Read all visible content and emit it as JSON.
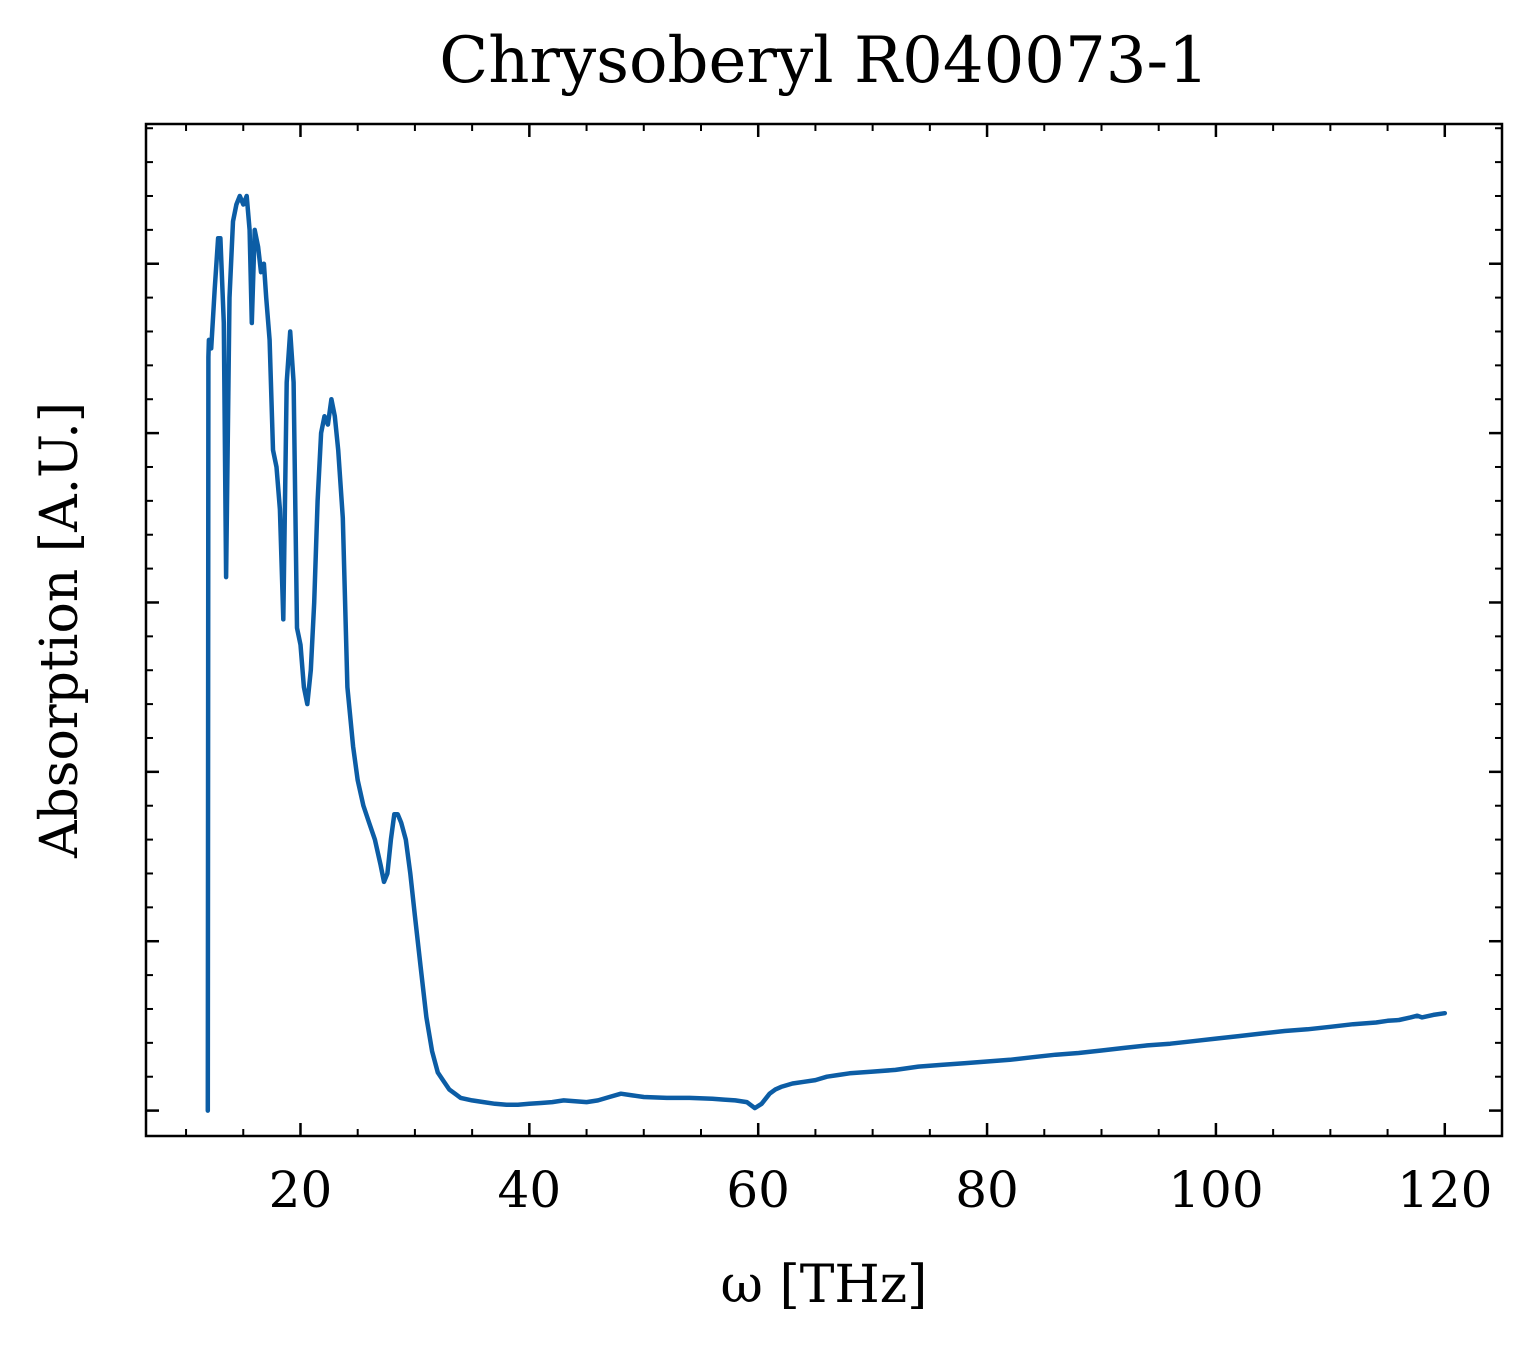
{
  "chart_data": {
    "type": "line",
    "title": "Chrysoberyl R040073-1",
    "xlabel": "ω [THz]",
    "ylabel": "Absorption [A.U.]",
    "xlim": [
      6.5,
      125
    ],
    "ylim": [
      -0.03,
      1.165
    ],
    "xticks": [
      20,
      40,
      60,
      80,
      100,
      120
    ],
    "xtick_labels": [
      "20",
      "40",
      "60",
      "80",
      "100",
      "120"
    ],
    "yticks": [
      0.0,
      0.2,
      0.4,
      0.6,
      0.8,
      1.0
    ],
    "ytick_labels_shown": false,
    "grid": false,
    "line_color": "#0c5da5",
    "series": [
      {
        "x": [
          11.9,
          11.95,
          12.0,
          12.2,
          12.5,
          12.8,
          13.0,
          13.3,
          13.5,
          13.8,
          14.1,
          14.4,
          14.7,
          15.0,
          15.3,
          15.55,
          15.75,
          16.0,
          16.3,
          16.55,
          16.8,
          17.0,
          17.3,
          17.6,
          17.9,
          18.2,
          18.5,
          18.8,
          19.1,
          19.4,
          19.7,
          20.0,
          20.3,
          20.6,
          20.9,
          21.2,
          21.5,
          21.8,
          22.1,
          22.4,
          22.7,
          23.0,
          23.3,
          23.7,
          24.1,
          24.6,
          25.0,
          25.5,
          26.0,
          26.5,
          27.0,
          27.3,
          27.6,
          27.9,
          28.2,
          28.5,
          28.8,
          29.2,
          29.6,
          30.0,
          30.5,
          31.0,
          31.5,
          32.0,
          32.5,
          33.0,
          33.5,
          34.0,
          35.0,
          36.0,
          37.0,
          38.0,
          39.0,
          40.0,
          41.0,
          42.0,
          43.0,
          44.0,
          45.0,
          46.0,
          47.0,
          48.0,
          49.0,
          50.0,
          52.0,
          54.0,
          56.0,
          57.0,
          58.0,
          59.0,
          59.7,
          60.3,
          61.0,
          61.5,
          62.0,
          63.0,
          64.0,
          65.0,
          66.0,
          67.0,
          68.0,
          70.0,
          72.0,
          74.0,
          76.0,
          78.0,
          80.0,
          82.0,
          84.0,
          86.0,
          88.0,
          90.0,
          92.0,
          94.0,
          96.0,
          98.0,
          100.0,
          102.0,
          104.0,
          106.0,
          108.0,
          110.0,
          112.0,
          114.0,
          115.0,
          116.0,
          117.0,
          117.6,
          118.0,
          119.0,
          120.0
        ],
        "y": [
          0.0,
          0.89,
          0.91,
          0.9,
          0.97,
          1.03,
          1.03,
          0.93,
          0.63,
          0.96,
          1.05,
          1.07,
          1.08,
          1.07,
          1.08,
          1.04,
          0.93,
          1.04,
          1.02,
          0.99,
          1.0,
          0.96,
          0.91,
          0.78,
          0.76,
          0.71,
          0.58,
          0.86,
          0.92,
          0.86,
          0.57,
          0.55,
          0.5,
          0.48,
          0.52,
          0.6,
          0.72,
          0.8,
          0.82,
          0.81,
          0.84,
          0.82,
          0.78,
          0.7,
          0.5,
          0.43,
          0.39,
          0.36,
          0.34,
          0.32,
          0.29,
          0.27,
          0.28,
          0.32,
          0.35,
          0.35,
          0.34,
          0.32,
          0.28,
          0.23,
          0.17,
          0.11,
          0.07,
          0.045,
          0.035,
          0.025,
          0.02,
          0.015,
          0.012,
          0.01,
          0.008,
          0.007,
          0.007,
          0.008,
          0.009,
          0.01,
          0.012,
          0.011,
          0.01,
          0.012,
          0.016,
          0.02,
          0.018,
          0.016,
          0.015,
          0.015,
          0.014,
          0.013,
          0.012,
          0.01,
          0.003,
          0.008,
          0.02,
          0.025,
          0.028,
          0.032,
          0.034,
          0.036,
          0.04,
          0.042,
          0.044,
          0.046,
          0.048,
          0.052,
          0.054,
          0.056,
          0.058,
          0.06,
          0.063,
          0.066,
          0.068,
          0.071,
          0.074,
          0.077,
          0.079,
          0.082,
          0.085,
          0.088,
          0.091,
          0.094,
          0.096,
          0.099,
          0.102,
          0.104,
          0.106,
          0.107,
          0.11,
          0.112,
          0.11,
          0.113,
          0.115
        ]
      }
    ]
  }
}
